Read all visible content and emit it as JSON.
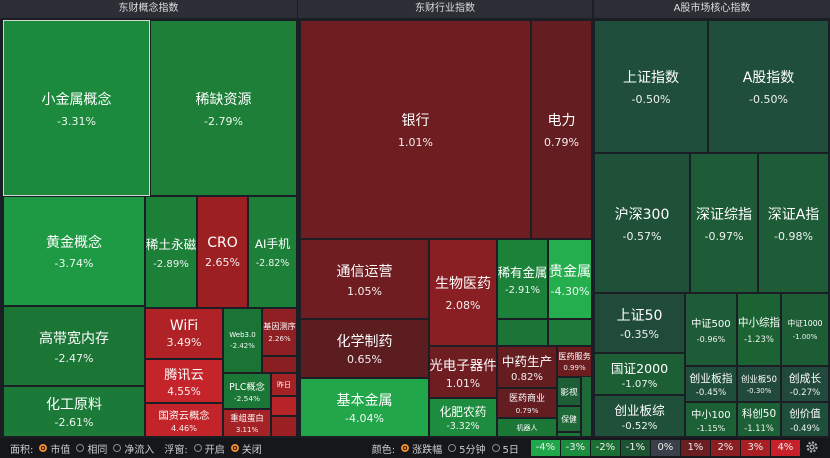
{
  "panels": [
    {
      "title": "东财概念指数",
      "tiles": [
        {
          "name": "小金属概念",
          "change": "-3.31%",
          "color": "#1c8a3d"
        },
        {
          "name": "稀缺资源",
          "change": "-2.79%",
          "color": "#1d7f38"
        },
        {
          "name": "黄金概念",
          "change": "-3.74%",
          "color": "#1f9a44"
        },
        {
          "name": "稀土永磁",
          "change": "-2.89%",
          "color": "#1c8039"
        },
        {
          "name": "CRO",
          "change": "2.65%",
          "color": "#9c1f22"
        },
        {
          "name": "AI手机",
          "change": "-2.82%",
          "color": "#1d8039"
        },
        {
          "name": "高带宽内存",
          "change": "-2.47%",
          "color": "#1b7535"
        },
        {
          "name": "化工原料",
          "change": "-2.61%",
          "color": "#1b7a37"
        },
        {
          "name": "WiFi",
          "change": "3.49%",
          "color": "#b02226"
        },
        {
          "name": "腾讯云",
          "change": "4.55%",
          "color": "#c4242a"
        },
        {
          "name": "国资云概念",
          "change": "4.46%",
          "color": "#c2242a"
        },
        {
          "name": "Web3.0",
          "change": "-2.42%",
          "color": "#1b7435"
        },
        {
          "name": "基因测序",
          "change": "2.26%",
          "color": "#8e1f22"
        },
        {
          "name": "PLC概念",
          "change": "-2.54%",
          "color": "#1b7736"
        },
        {
          "name": "昨日",
          "color": "#a32226"
        },
        {
          "name": "重组蛋白",
          "change": "3.11%",
          "color": "#a52226"
        }
      ]
    },
    {
      "title": "东财行业指数",
      "tiles": [
        {
          "name": "银行",
          "change": "1.01%",
          "color": "#6e1d20"
        },
        {
          "name": "电力",
          "change": "0.79%",
          "color": "#641d20"
        },
        {
          "name": "通信运营",
          "change": "1.05%",
          "color": "#6f1d20"
        },
        {
          "name": "化学制药",
          "change": "0.65%",
          "color": "#5c1d20"
        },
        {
          "name": "基本金属",
          "change": "-4.04%",
          "color": "#22a64a"
        },
        {
          "name": "生物医药",
          "change": "2.08%",
          "color": "#891f22"
        },
        {
          "name": "稀有金属",
          "change": "-2.91%",
          "color": "#1c823a"
        },
        {
          "name": "贵金属",
          "change": "-4.30%",
          "color": "#25ae4d"
        },
        {
          "name": "光电子器件",
          "change": "1.01%",
          "color": "#6e1d20"
        },
        {
          "name": "化肥农药",
          "change": "-3.32%",
          "color": "#1d8c3e"
        },
        {
          "name": "中药生产",
          "change": "0.82%",
          "color": "#651d20"
        },
        {
          "name": "医药服务",
          "change": "0.99%",
          "color": "#6c1d20"
        },
        {
          "name": "医药商业",
          "change": "0.79%",
          "color": "#641d20"
        },
        {
          "name": "影视",
          "color": "#1d5e36"
        },
        {
          "name": "保健",
          "color": "#1d6a38"
        },
        {
          "name": "机器人",
          "color": "#1b7736"
        }
      ]
    },
    {
      "title": "A股市场核心指数",
      "tiles": [
        {
          "name": "上证指数",
          "change": "-0.50%",
          "color": "#1f4f3a"
        },
        {
          "name": "A股指数",
          "change": "-0.50%",
          "color": "#1f4f3a"
        },
        {
          "name": "沪深300",
          "change": "-0.57%",
          "color": "#1f5139"
        },
        {
          "name": "深证综指",
          "change": "-0.97%",
          "color": "#1d5c36"
        },
        {
          "name": "深证A指",
          "change": "-0.98%",
          "color": "#1d5c36"
        },
        {
          "name": "上证50",
          "change": "-0.35%",
          "color": "#204b3b"
        },
        {
          "name": "国证2000",
          "change": "-1.07%",
          "color": "#1c5f35"
        },
        {
          "name": "创业板综",
          "change": "-0.52%",
          "color": "#1f503a"
        },
        {
          "name": "中证500",
          "change": "-0.96%",
          "color": "#1d5c36"
        },
        {
          "name": "中小综指",
          "change": "-1.23%",
          "color": "#1c6334"
        },
        {
          "name": "中证1000",
          "change": "-1.00%",
          "color": "#1d5d36"
        },
        {
          "name": "创业板指",
          "change": "-0.45%",
          "color": "#1f4e3a"
        },
        {
          "name": "创业板50",
          "change": "-0.30%",
          "color": "#214a3c"
        },
        {
          "name": "创成长",
          "change": "-0.27%",
          "color": "#21493c"
        },
        {
          "name": "中小100",
          "change": "-1.15%",
          "color": "#1c6135"
        },
        {
          "name": "科创50",
          "change": "-1.11%",
          "color": "#1c6035"
        },
        {
          "name": "创价值",
          "change": "-0.49%",
          "color": "#1f4f3a"
        }
      ]
    }
  ],
  "controls": [
    {
      "label": "面积:",
      "options": [
        "市值",
        "相同",
        "净流入"
      ],
      "selected": 0
    },
    {
      "label": "浮窗:",
      "options": [
        "开启",
        "关闭"
      ],
      "selected": 1
    },
    {
      "label": "颜色:",
      "options": [
        "涨跌幅",
        "5分钟",
        "5日"
      ],
      "selected": 0
    }
  ],
  "legend": [
    {
      "label": "-4%",
      "color": "#1fa84a"
    },
    {
      "label": "-3%",
      "color": "#1c8c3e"
    },
    {
      "label": "-2%",
      "color": "#1a7034"
    },
    {
      "label": "-1%",
      "color": "#1b5430"
    },
    {
      "label": "0%",
      "color": "#3a3f4a"
    },
    {
      "label": "1%",
      "color": "#6a1e22"
    },
    {
      "label": "2%",
      "color": "#8a1e22"
    },
    {
      "label": "3%",
      "color": "#a81e22"
    },
    {
      "label": "4%",
      "color": "#c8202a"
    }
  ]
}
